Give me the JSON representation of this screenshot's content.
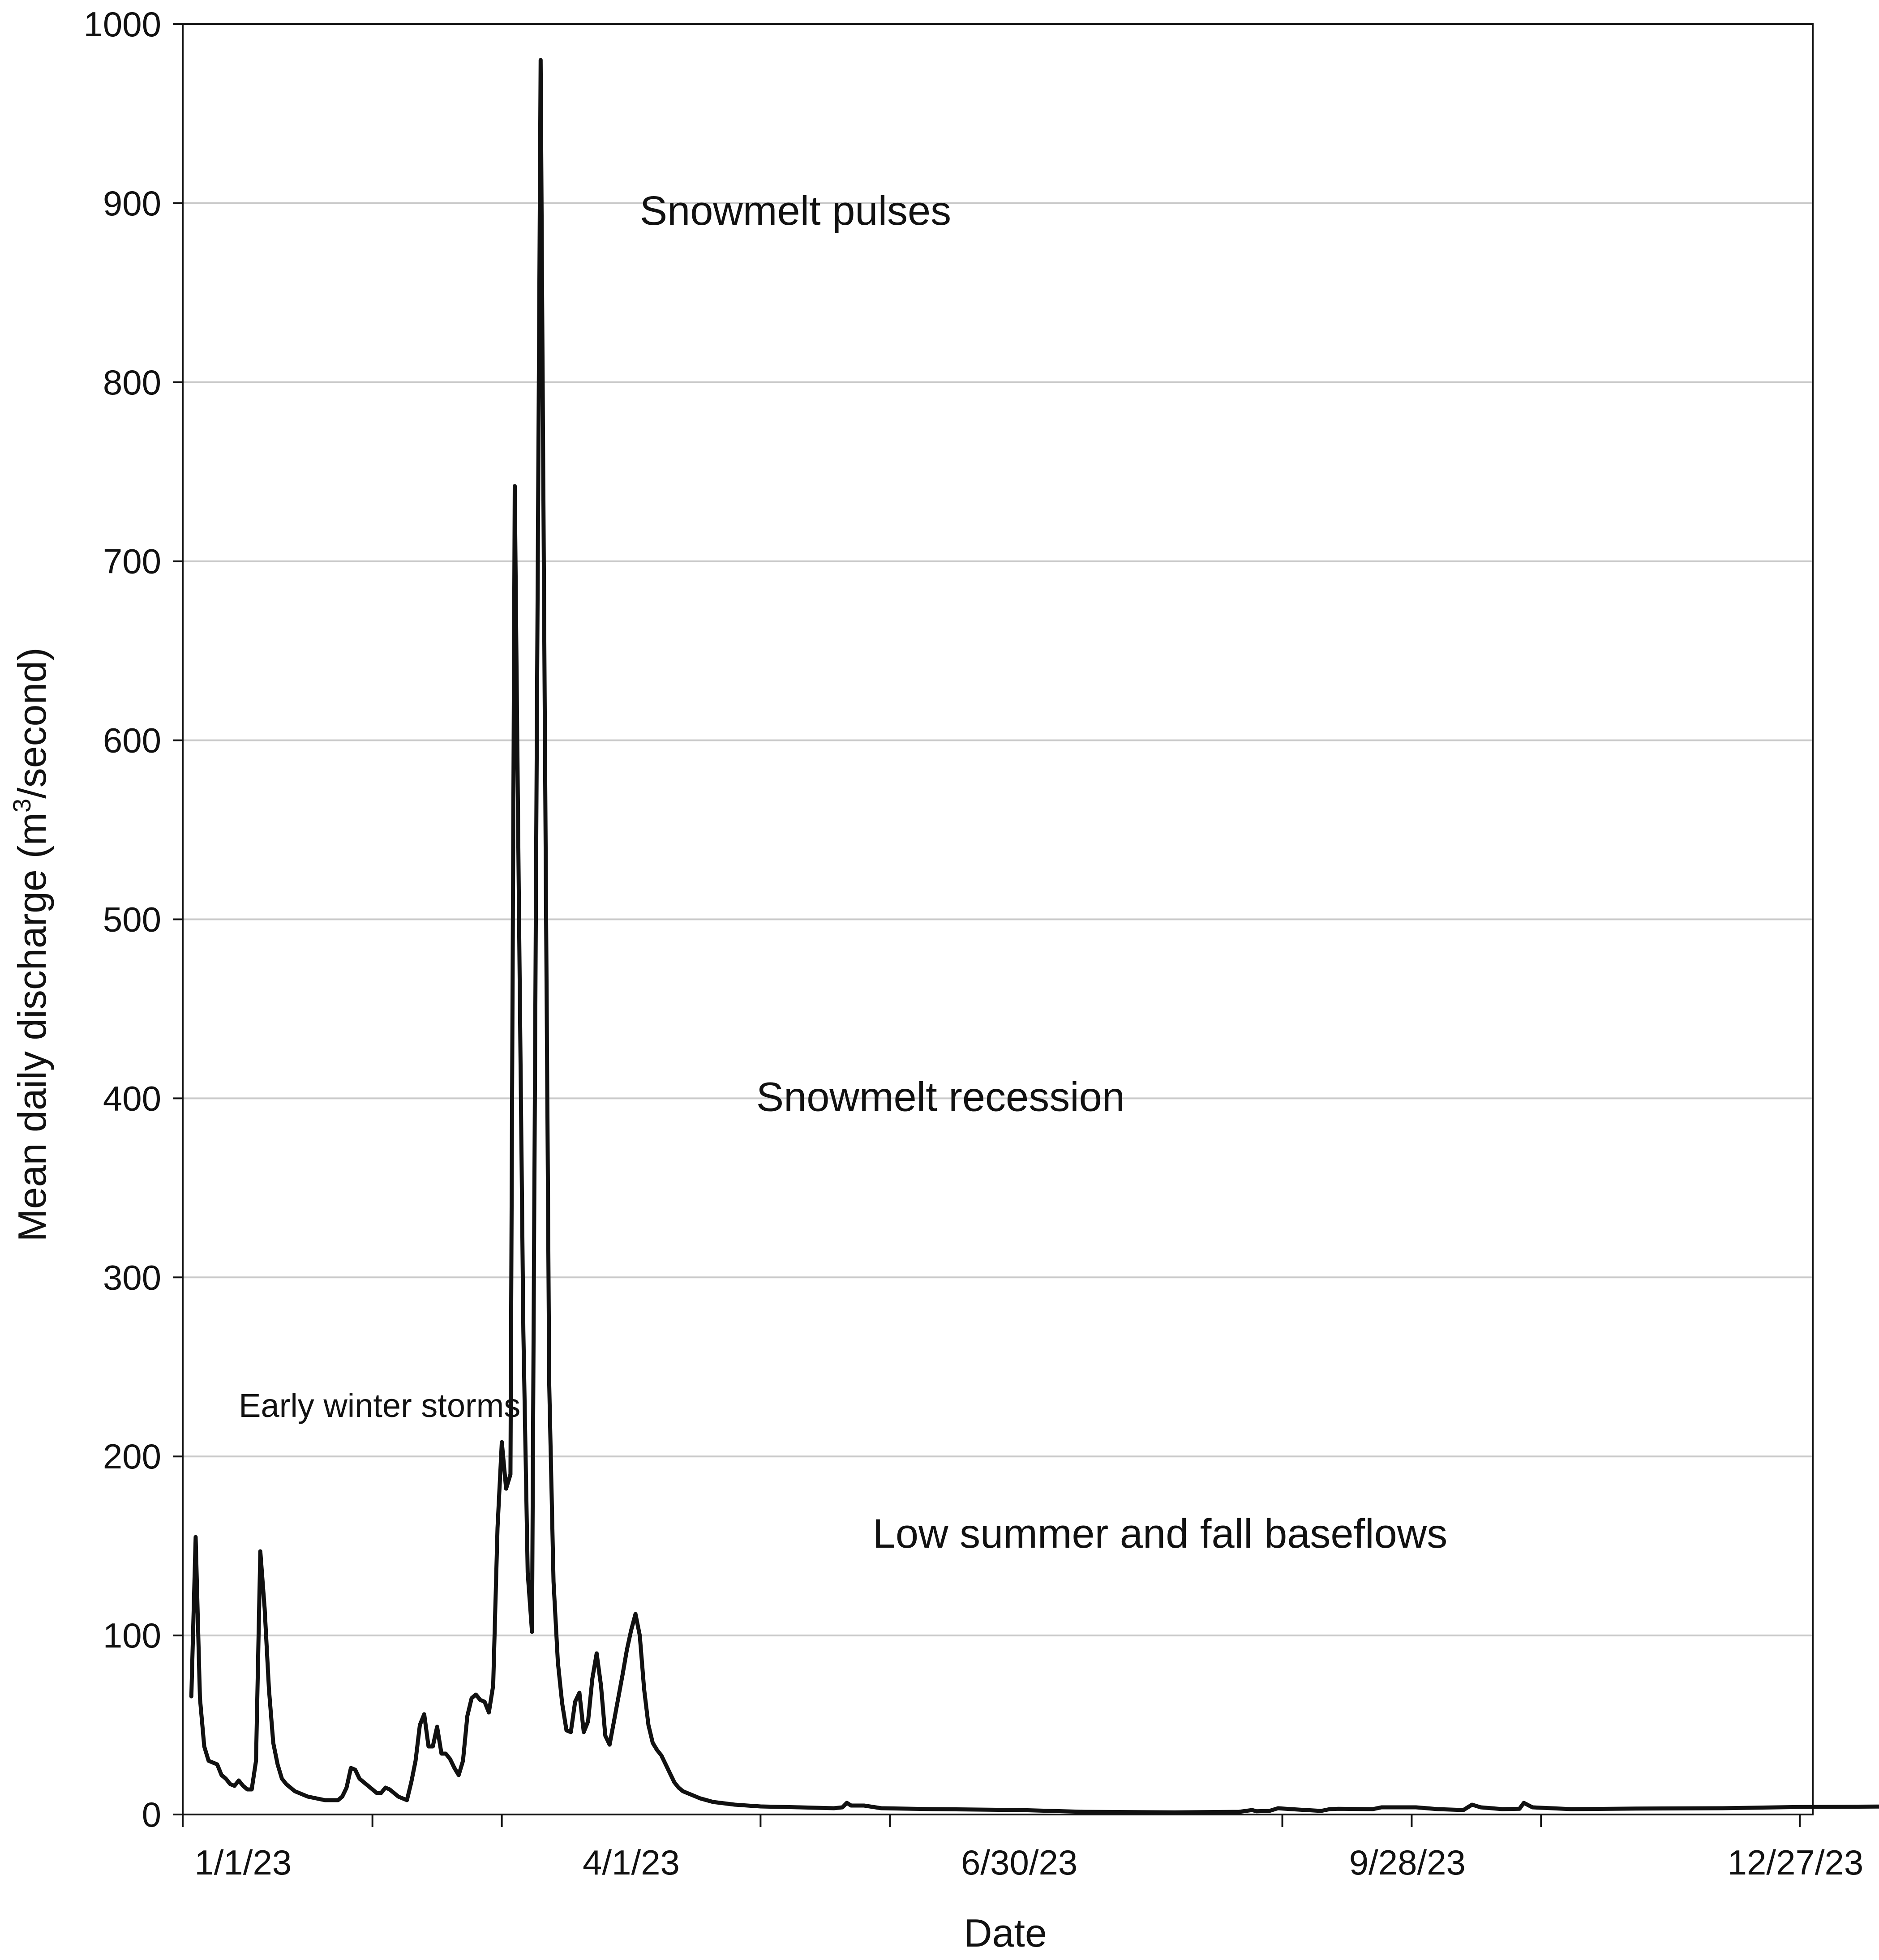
{
  "chart_data": {
    "type": "line",
    "title": "",
    "xlabel": "Date",
    "ylabel_parts": {
      "pre": "Mean daily discharge (m",
      "sup": "3",
      "post": "/second)"
    },
    "ylim": [
      0,
      1000
    ],
    "yticks": [
      0,
      100,
      200,
      300,
      400,
      500,
      600,
      700,
      800,
      900,
      1000
    ],
    "x_domain": [
      "12/18/22",
      "12/31/23"
    ],
    "xtick_labels": [
      {
        "date": "1/1/23",
        "label": "1/1/23"
      },
      {
        "date": "4/1/23",
        "label": "4/1/23"
      },
      {
        "date": "6/30/23",
        "label": "6/30/23"
      },
      {
        "date": "9/28/23",
        "label": "9/28/23"
      },
      {
        "date": "12/27/23",
        "label": "12/27/23"
      }
    ],
    "xtick_marks": [
      "12/18/22",
      "1/31/23",
      "3/2/23",
      "5/1/23",
      "5/31/23",
      "8/30/23",
      "9/29/23",
      "10/29/23",
      "12/28/23"
    ],
    "grid": "horizontal",
    "line_color": "#111111",
    "annotations": [
      {
        "text": "Early winter storms",
        "x": "12/31/22",
        "y": 222,
        "size": "small"
      },
      {
        "text": "Snowmelt pulses",
        "x": "4/3/23",
        "y": 888,
        "size": "large"
      },
      {
        "text": "Snowmelt recession",
        "x": "4/30/23",
        "y": 393,
        "size": "large"
      },
      {
        "text": "Low summer and fall baseflows",
        "x": "5/27/23",
        "y": 149,
        "size": "large"
      }
    ],
    "series": [
      {
        "points": [
          [
            "12/20/22",
            66
          ],
          [
            "12/21/22",
            155
          ],
          [
            "12/22/22",
            65
          ],
          [
            "12/23/22",
            38
          ],
          [
            "12/24/22",
            30
          ],
          [
            "12/25/22",
            29
          ],
          [
            "12/26/22",
            28
          ],
          [
            "12/27/22",
            22
          ],
          [
            "12/28/22",
            20
          ],
          [
            "12/29/22",
            17
          ],
          [
            "12/30/22",
            16
          ],
          [
            "12/31/22",
            19
          ],
          [
            "1/1/23",
            16
          ],
          [
            "1/2/23",
            14
          ],
          [
            "1/3/23",
            14
          ],
          [
            "1/4/23",
            30
          ],
          [
            "1/5/23",
            147
          ],
          [
            "1/6/23",
            115
          ],
          [
            "1/7/23",
            70
          ],
          [
            "1/8/23",
            40
          ],
          [
            "1/9/23",
            28
          ],
          [
            "1/10/23",
            20
          ],
          [
            "1/11/23",
            17
          ],
          [
            "1/12/23",
            15
          ],
          [
            "1/13/23",
            13
          ],
          [
            "1/14/23",
            12
          ],
          [
            "1/15/23",
            11
          ],
          [
            "1/16/23",
            10
          ],
          [
            "1/17/23",
            9.5
          ],
          [
            "1/18/23",
            9
          ],
          [
            "1/19/23",
            8.5
          ],
          [
            "1/20/23",
            8
          ],
          [
            "1/21/23",
            8
          ],
          [
            "1/22/23",
            8
          ],
          [
            "1/23/23",
            8
          ],
          [
            "1/24/23",
            10
          ],
          [
            "1/25/23",
            15
          ],
          [
            "1/26/23",
            26
          ],
          [
            "1/27/23",
            25
          ],
          [
            "1/28/23",
            20
          ],
          [
            "1/29/23",
            18
          ],
          [
            "1/30/23",
            16
          ],
          [
            "1/31/23",
            14
          ],
          [
            "2/1/23",
            12
          ],
          [
            "2/2/23",
            12
          ],
          [
            "2/3/23",
            15
          ],
          [
            "2/4/23",
            14
          ],
          [
            "2/5/23",
            12
          ],
          [
            "2/6/23",
            10
          ],
          [
            "2/7/23",
            9
          ],
          [
            "2/8/23",
            8
          ],
          [
            "2/9/23",
            18
          ],
          [
            "2/10/23",
            30
          ],
          [
            "2/11/23",
            50
          ],
          [
            "2/12/23",
            56
          ],
          [
            "2/13/23",
            38
          ],
          [
            "2/14/23",
            38
          ],
          [
            "2/15/23",
            49
          ],
          [
            "2/16/23",
            34
          ],
          [
            "2/17/23",
            34
          ],
          [
            "2/18/23",
            31
          ],
          [
            "2/19/23",
            26
          ],
          [
            "2/20/23",
            22
          ],
          [
            "2/21/23",
            30
          ],
          [
            "2/22/23",
            55
          ],
          [
            "2/23/23",
            65
          ],
          [
            "2/24/23",
            67
          ],
          [
            "2/25/23",
            64
          ],
          [
            "2/26/23",
            63
          ],
          [
            "2/27/23",
            57
          ],
          [
            "2/28/23",
            72
          ],
          [
            "3/1/23",
            160
          ],
          [
            "3/2/23",
            208
          ],
          [
            "3/3/23",
            182
          ],
          [
            "3/4/23",
            190
          ],
          [
            "3/5/23",
            742
          ],
          [
            "3/6/23",
            500
          ],
          [
            "3/7/23",
            270
          ],
          [
            "3/8/23",
            135
          ],
          [
            "3/9/23",
            102
          ],
          [
            "3/10/23",
            550
          ],
          [
            "3/11/23",
            980
          ],
          [
            "3/12/23",
            600
          ],
          [
            "3/13/23",
            240
          ],
          [
            "3/14/23",
            130
          ],
          [
            "3/15/23",
            85
          ],
          [
            "3/16/23",
            62
          ],
          [
            "3/17/23",
            47
          ],
          [
            "3/18/23",
            46
          ],
          [
            "3/19/23",
            63
          ],
          [
            "3/20/23",
            68
          ],
          [
            "3/21/23",
            46
          ],
          [
            "3/22/23",
            52
          ],
          [
            "3/23/23",
            76
          ],
          [
            "3/24/23",
            90
          ],
          [
            "3/25/23",
            72
          ],
          [
            "3/26/23",
            44
          ],
          [
            "3/27/23",
            39
          ],
          [
            "3/28/23",
            52
          ],
          [
            "3/29/23",
            65
          ],
          [
            "3/30/23",
            78
          ],
          [
            "3/31/23",
            92
          ],
          [
            "4/1/23",
            103
          ],
          [
            "4/2/23",
            112
          ],
          [
            "4/3/23",
            100
          ],
          [
            "4/4/23",
            70
          ],
          [
            "4/5/23",
            50
          ],
          [
            "4/6/23",
            40
          ],
          [
            "4/7/23",
            36
          ],
          [
            "4/8/23",
            33
          ],
          [
            "4/9/23",
            28
          ],
          [
            "4/10/23",
            23
          ],
          [
            "4/11/23",
            18
          ],
          [
            "4/12/23",
            15
          ],
          [
            "4/13/23",
            13
          ],
          [
            "4/15/23",
            11
          ],
          [
            "4/17/23",
            9
          ],
          [
            "4/20/23",
            7
          ],
          [
            "4/25/23",
            5.5
          ],
          [
            "5/1/23",
            4.5
          ],
          [
            "5/10/23",
            4
          ],
          [
            "5/18/23",
            3.5
          ],
          [
            "5/20/23",
            4
          ],
          [
            "5/21/23",
            6.5
          ],
          [
            "5/22/23",
            5
          ],
          [
            "5/25/23",
            5
          ],
          [
            "5/29/23",
            3.5
          ],
          [
            "6/10/23",
            3
          ],
          [
            "6/30/23",
            2.5
          ],
          [
            "7/15/23",
            1.5
          ],
          [
            "8/5/23",
            1.2
          ],
          [
            "8/20/23",
            1.5
          ],
          [
            "8/23/23",
            2.5
          ],
          [
            "8/24/23",
            1.8
          ],
          [
            "8/27/23",
            2
          ],
          [
            "8/29/23",
            3.5
          ],
          [
            "9/1/23",
            3
          ],
          [
            "9/8/23",
            2
          ],
          [
            "9/10/23",
            3
          ],
          [
            "9/12/23",
            3.2
          ],
          [
            "9/20/23",
            3
          ],
          [
            "9/22/23",
            4
          ],
          [
            "9/30/23",
            4
          ],
          [
            "10/5/23",
            3
          ],
          [
            "10/11/23",
            2.5
          ],
          [
            "10/13/23",
            5.5
          ],
          [
            "10/15/23",
            4
          ],
          [
            "10/20/23",
            3
          ],
          [
            "10/24/23",
            3.2
          ],
          [
            "10/25/23",
            6.5
          ],
          [
            "10/27/23",
            4
          ],
          [
            "11/5/23",
            3
          ],
          [
            "11/20/23",
            3.3
          ],
          [
            "12/10/23",
            3.5
          ],
          [
            "12/28/23",
            4.2
          ],
          [
            "1/20/24",
            4.5
          ],
          [
            "2/20/24",
            5
          ],
          [
            "3/25/24",
            5.3
          ],
          [
            "4/15/24",
            5.2
          ]
        ]
      }
    ]
  }
}
